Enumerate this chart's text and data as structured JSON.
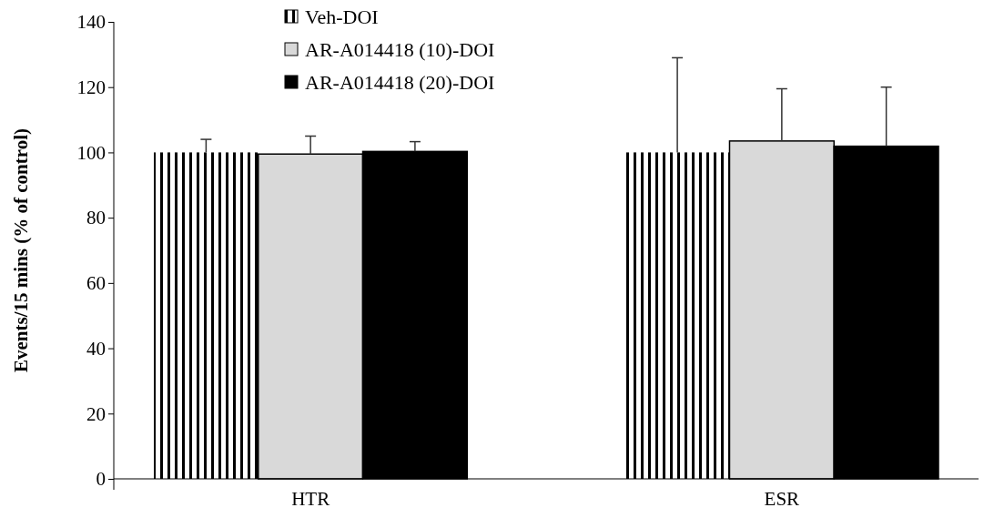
{
  "chart_data": {
    "type": "bar",
    "ylabel": "Events/15 mins (% of control)",
    "categories": [
      "HTR",
      "ESR"
    ],
    "series": [
      {
        "name": "Veh-DOI",
        "color": "#ffffff",
        "values": [
          100,
          100
        ],
        "errors": [
          [
            100,
            104
          ],
          [
            100,
            129
          ]
        ]
      },
      {
        "name": "AR-A014418 (10)-DOI",
        "color": "#d9d9d9",
        "values": [
          99.5,
          103.5
        ],
        "errors": [
          [
            99.5,
            105
          ],
          [
            103.5,
            119.5
          ]
        ]
      },
      {
        "name": "AR-A014418 (20)-DOI",
        "color": "#000000",
        "values": [
          100.3,
          101.9
        ],
        "errors": [
          [
            100.3,
            103.3
          ],
          [
            101.9,
            120
          ]
        ]
      }
    ],
    "ylim": [
      0,
      140
    ],
    "yticks": [
      0,
      20,
      40,
      60,
      80,
      100,
      120,
      140
    ],
    "grid": false,
    "legend": "top"
  }
}
